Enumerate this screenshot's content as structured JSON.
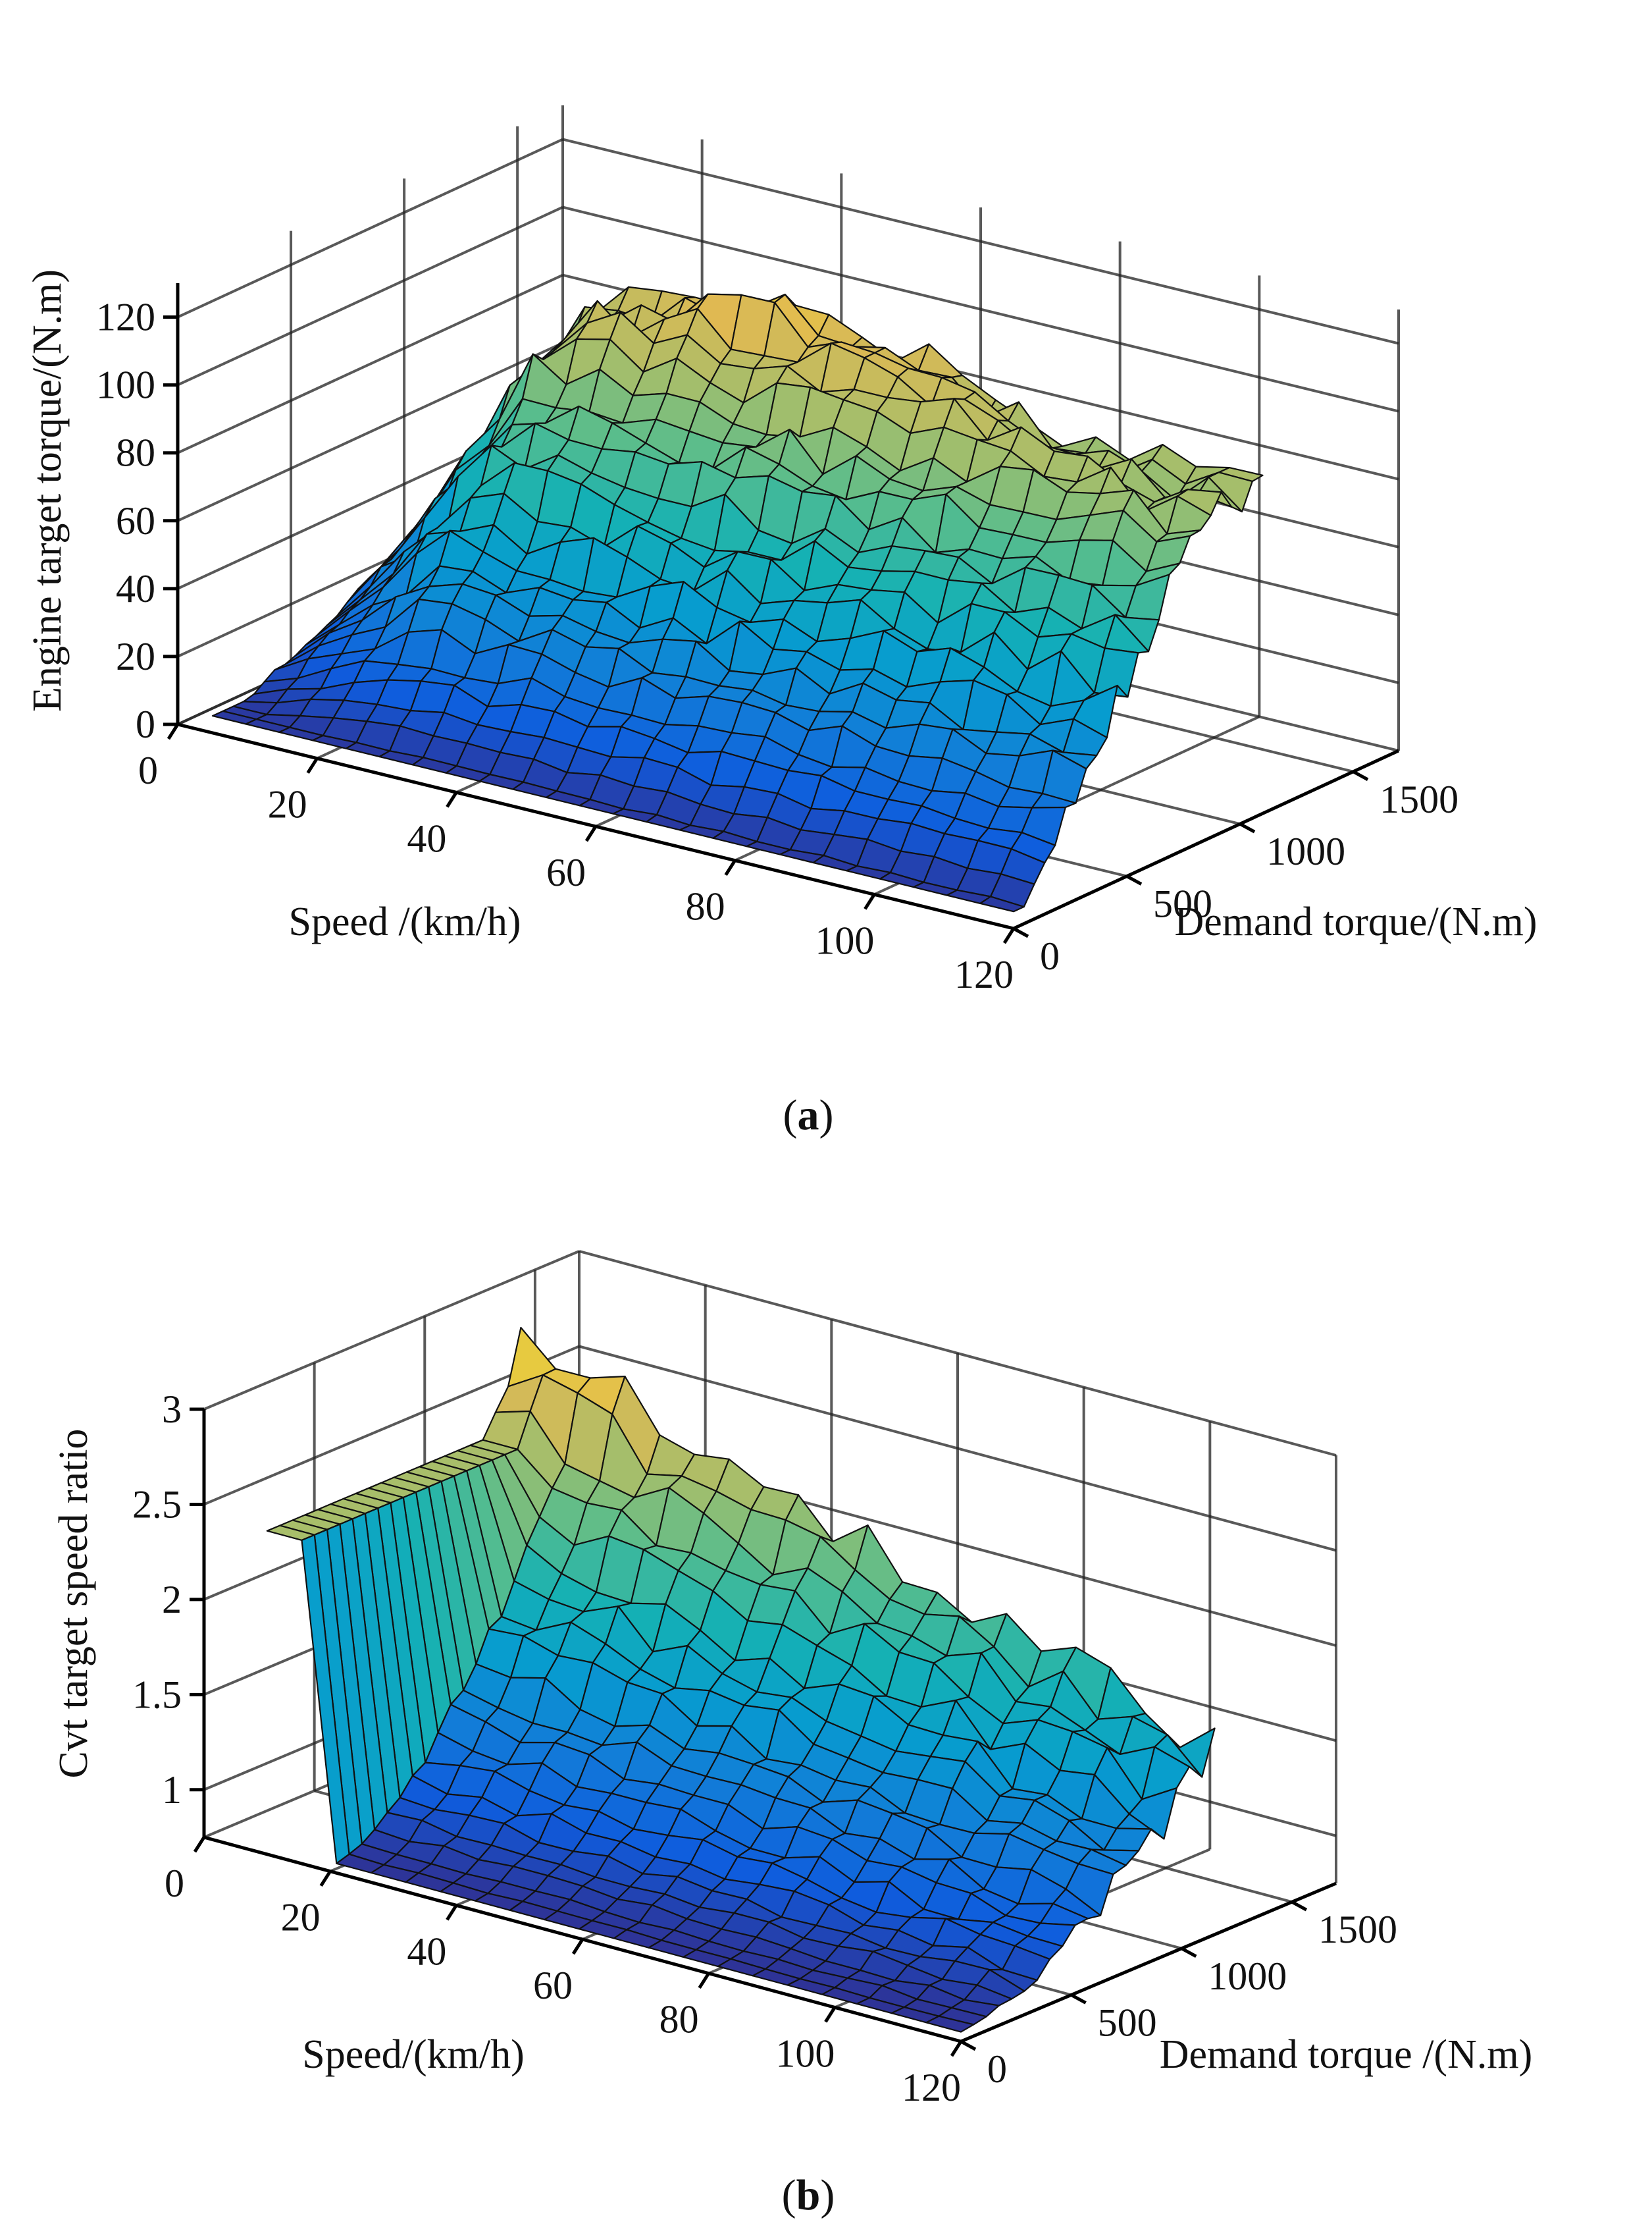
{
  "figure": {
    "panels": [
      "a",
      "b"
    ]
  },
  "chart_data": [
    {
      "id": "a",
      "type": "surface3d",
      "caption": {
        "open": "(",
        "letter": "a",
        "close": ")"
      },
      "xlabel": "Speed /(km/h)",
      "ylabel": "Demand torque/(N.m)",
      "zlabel": "Engine target torque/(N.m)",
      "xlim": [
        0,
        120
      ],
      "ylim": [
        0,
        1700
      ],
      "zlim": [
        0,
        130
      ],
      "xticks": [
        0,
        20,
        40,
        60,
        80,
        100,
        120
      ],
      "yticks": [
        0,
        500,
        1000,
        1500
      ],
      "zticks": [
        0,
        20,
        40,
        60,
        80,
        100,
        120
      ],
      "grid": true,
      "colormap": "parula",
      "surface_x_range": [
        5,
        120
      ],
      "surface_y_range": [
        0,
        1100
      ],
      "surface_resolution": [
        24,
        24
      ],
      "description": "Engine target torque rises with demand torque to a plateau near 90-110 N.m, with a noisy ridge reaching about 125 N.m at low-to-mid speeds."
    },
    {
      "id": "b",
      "type": "surface3d",
      "caption": {
        "open": "(",
        "letter": "b",
        "close": ")"
      },
      "xlabel": "Speed/(km/h)",
      "ylabel": "Demand torque /(N.m)",
      "zlabel": "Cvt target speed ratio",
      "xlim": [
        0,
        120
      ],
      "ylim": [
        0,
        1700
      ],
      "zlim": [
        0.75,
        3
      ],
      "xticks": [
        0,
        20,
        40,
        60,
        80,
        100,
        120
      ],
      "yticks": [
        0,
        500,
        1000,
        1500
      ],
      "zticks": [
        1,
        1.5,
        2,
        2.5,
        3
      ],
      "ztick_labels": [
        "1",
        "1.5",
        "2",
        "2.5",
        "3"
      ],
      "grid": true,
      "colormap": "parula",
      "surface_x_range": [
        10,
        120
      ],
      "surface_y_range": [
        0,
        1150
      ],
      "surface_resolution": [
        20,
        20
      ],
      "description": "CVT target speed ratio is near 0.8-1.2 at low demand torque and rises toward 2.5-3 at low speeds and high demand torque, with a wall near 2.5 at the lowest speed."
    }
  ]
}
